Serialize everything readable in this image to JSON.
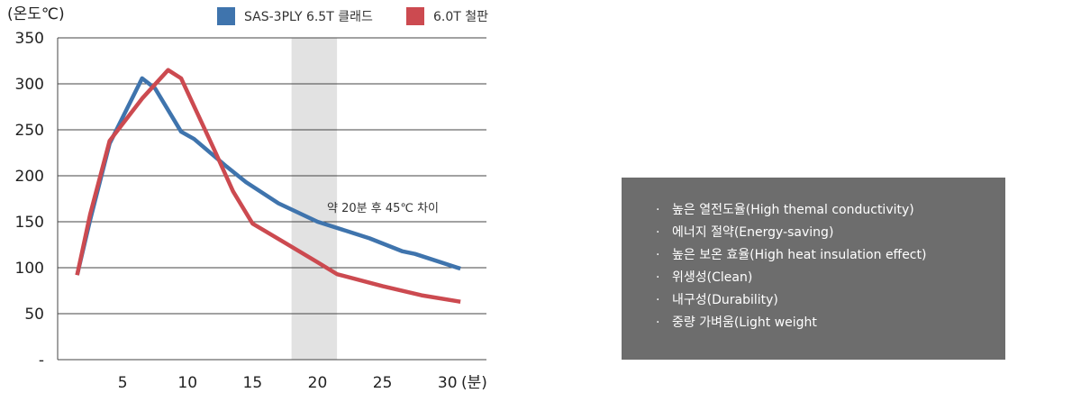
{
  "chart_data": {
    "type": "line",
    "ylabel": "(온도℃)",
    "xlabel": "(분)",
    "ylim": [
      0,
      350
    ],
    "xlim": [
      0,
      33
    ],
    "yticks": [
      {
        "value": 350,
        "label": "350"
      },
      {
        "value": 300,
        "label": "300"
      },
      {
        "value": 250,
        "label": "250"
      },
      {
        "value": 200,
        "label": "200"
      },
      {
        "value": 150,
        "label": "150"
      },
      {
        "value": 100,
        "label": "100"
      },
      {
        "value": 50,
        "label": "50"
      },
      {
        "value": 0,
        "label": "-"
      }
    ],
    "xticks": [
      5,
      10,
      15,
      20,
      25,
      30
    ],
    "highlight_band": [
      18,
      21.5
    ],
    "annotation": "약 20분 후 45℃ 차이",
    "legend": "top",
    "grid": true,
    "series": [
      {
        "name": "SAS-3PLY 6.5T 클래드",
        "color": "#3f74ad",
        "x": [
          1.5,
          2.5,
          4,
          6.5,
          7.5,
          9.5,
          10.5,
          13,
          14.5,
          17,
          20,
          24,
          26.5,
          27.5,
          31
        ],
        "y": [
          92,
          152,
          235,
          306,
          295,
          248,
          240,
          210,
          193,
          170,
          150,
          132,
          118,
          115,
          99
        ]
      },
      {
        "name": "6.0T 철판",
        "color": "#cc4a50",
        "x": [
          1.5,
          2.5,
          4,
          6.5,
          8.5,
          9.5,
          12,
          13.5,
          15,
          17.5,
          20,
          21.5,
          25,
          28,
          31
        ],
        "y": [
          92,
          158,
          238,
          284,
          315,
          306,
          230,
          183,
          148,
          127,
          106,
          93,
          80,
          70,
          63
        ]
      }
    ]
  },
  "features": {
    "bullet": "·",
    "items": [
      "높은 열전도율(High themal conductivity)",
      "에너지 절약(Energy-saving)",
      "높은 보온 효율(High heat insulation effect)",
      "위생성(Clean)",
      "내구성(Durability)",
      "중량 가벼움(Light weight"
    ]
  }
}
